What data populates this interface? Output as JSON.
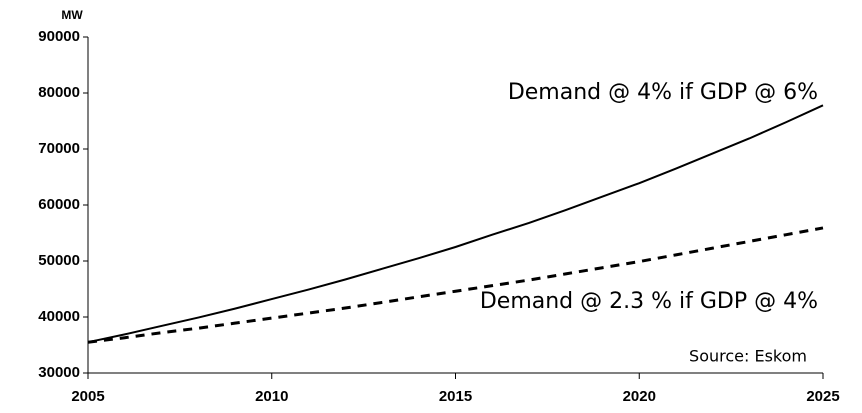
{
  "chart_data": {
    "type": "line",
    "y_unit": "MW",
    "x": [
      2005,
      2006,
      2007,
      2008,
      2009,
      2010,
      2011,
      2012,
      2013,
      2014,
      2015,
      2016,
      2017,
      2018,
      2019,
      2020,
      2021,
      2022,
      2023,
      2024,
      2025
    ],
    "series": [
      {
        "color": "#000000",
        "dash": false,
        "values": [
          35500,
          36900,
          38400,
          39900,
          41500,
          43200,
          44900,
          46700,
          48600,
          50500,
          52500,
          54700,
          56800,
          59100,
          61500,
          63900,
          66500,
          69200,
          71900,
          74800,
          77800
        ]
      },
      {
        "color": "#000000",
        "dash": true,
        "values": [
          35500,
          36300,
          37200,
          38000,
          38900,
          39800,
          40700,
          41600,
          42600,
          43600,
          44600,
          45600,
          46600,
          47700,
          48800,
          49900,
          51100,
          52300,
          53500,
          54700,
          55900
        ]
      }
    ],
    "annotations": [
      "Demand @ 4% if GDP @ 6%",
      "Demand @ 2.3 % if GDP @ 4%",
      "Source: Eskom"
    ],
    "xlim": [
      2005,
      2025
    ],
    "xticks": [
      2005,
      2010,
      2015,
      2020,
      2025
    ],
    "ylim": [
      30000,
      90000
    ],
    "yticks": [
      30000,
      40000,
      50000,
      60000,
      70000,
      80000,
      90000
    ],
    "grid": false
  }
}
